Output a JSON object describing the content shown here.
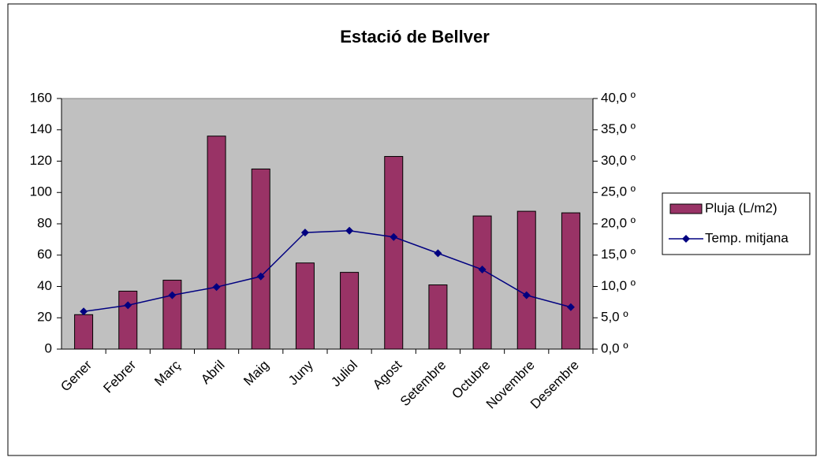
{
  "chart_data": {
    "type": "bar",
    "title": "Estació de Bellver",
    "categories": [
      "Gener",
      "Febrer",
      "Març",
      "Abril",
      "Maig",
      "Juny",
      "Juliol",
      "Agost",
      "Setembre",
      "Octubre",
      "Novembre",
      "Desembre"
    ],
    "series": [
      {
        "name": "Pluja (L/m2)",
        "type": "bar",
        "color": "#993366",
        "values": [
          22,
          37,
          44,
          136,
          115,
          55,
          49,
          123,
          41,
          85,
          88,
          87
        ]
      },
      {
        "name": "Temp. mitjana",
        "type": "line",
        "axis": "y2",
        "color": "#000080",
        "values": [
          6.0,
          7.0,
          8.6,
          9.9,
          11.6,
          18.6,
          18.9,
          17.9,
          15.3,
          12.7,
          8.6,
          6.7
        ]
      }
    ],
    "ylim": [
      0,
      160
    ],
    "yticks": [
      0,
      20,
      40,
      60,
      80,
      100,
      120,
      140,
      160
    ],
    "y2lim": [
      0,
      40
    ],
    "y2ticks": [
      {
        "value": 0,
        "label": "0,0 º"
      },
      {
        "value": 5,
        "label": "5,0 º"
      },
      {
        "value": 10,
        "label": "10,0 º"
      },
      {
        "value": 15,
        "label": "15,0 º"
      },
      {
        "value": 20,
        "label": "20,0 º"
      },
      {
        "value": 25,
        "label": "25,0 º"
      },
      {
        "value": 30,
        "label": "30,0 º"
      },
      {
        "value": 35,
        "label": "35,0 º"
      },
      {
        "value": 40,
        "label": "40,0 º"
      }
    ],
    "plot_background": "#c0c0c0",
    "legend": "right"
  }
}
